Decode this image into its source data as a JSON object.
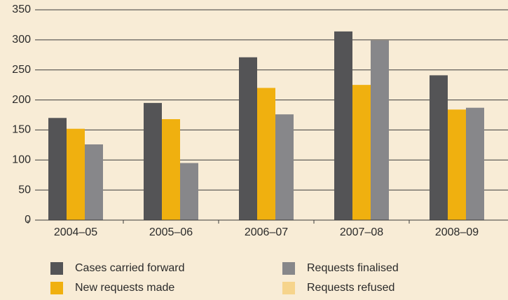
{
  "chart_data": {
    "type": "bar",
    "categories": [
      "2004–05",
      "2005–06",
      "2006–07",
      "2007–08",
      "2008–09"
    ],
    "series": [
      {
        "name": "Cases carried forward",
        "color": "#545456",
        "values": [
          170,
          195,
          271,
          314,
          241
        ]
      },
      {
        "name": "New requests made",
        "color": "#f0b00f",
        "values": [
          152,
          168,
          220,
          225,
          184
        ]
      },
      {
        "name": "Requests finalised",
        "color": "#87878a",
        "values": [
          126,
          95,
          176,
          299,
          187
        ]
      },
      {
        "name": "Requests refused",
        "color": "#f6d48c",
        "values": [
          null,
          null,
          null,
          null,
          null
        ]
      }
    ],
    "ylim": [
      0,
      350
    ],
    "yticks": [
      0,
      50,
      100,
      150,
      200,
      250,
      300,
      350
    ],
    "grid": true
  }
}
